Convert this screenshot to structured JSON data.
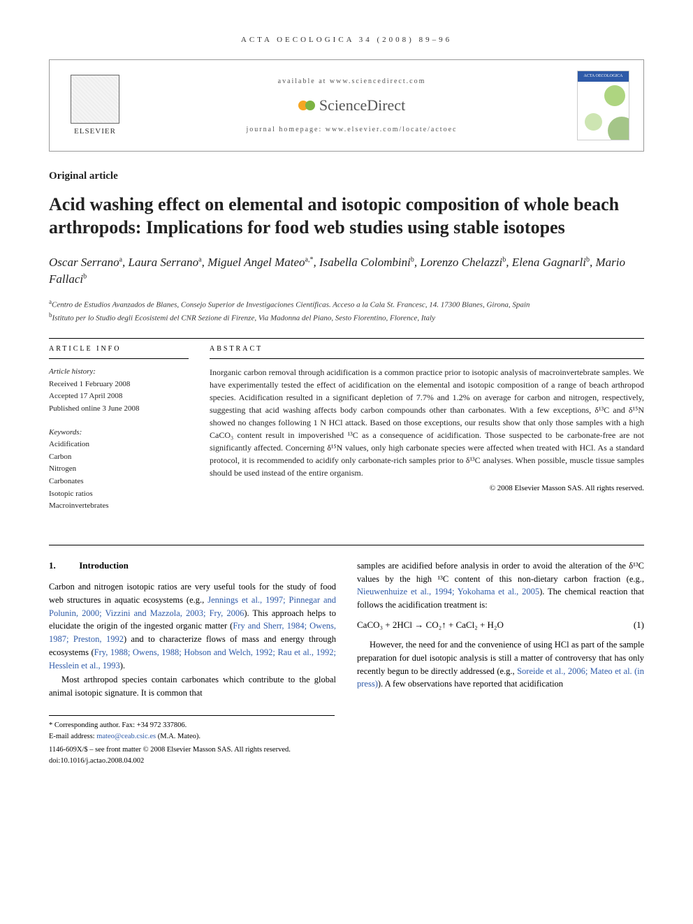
{
  "running_head": "ACTA OECOLOGICA 34 (2008) 89–96",
  "header": {
    "available": "available at www.sciencedirect.com",
    "brand": "ScienceDirect",
    "homepage": "journal homepage: www.elsevier.com/locate/actoec",
    "publisher": "ELSEVIER",
    "journal_cover_title": "ACTA OECOLOGICA"
  },
  "article_type": "Original article",
  "title": "Acid washing effect on elemental and isotopic composition of whole beach arthropods: Implications for food web studies using stable isotopes",
  "authors_html": "Oscar Serrano<sup>a</sup>, Laura Serrano<sup>a</sup>, Miguel Angel Mateo<sup>a,*</sup>, Isabella Colombini<sup>b</sup>, Lorenzo Chelazzi<sup>b</sup>, Elena Gagnarli<sup>b</sup>, Mario Fallaci<sup>b</sup>",
  "affiliations": {
    "a": "Centro de Estudios Avanzados de Blanes, Consejo Superior de Investigaciones Científicas. Acceso a la Cala St. Francesc, 14. 17300 Blanes, Girona, Spain",
    "b": "Istituto per lo Studio degli Ecosistemi del CNR Sezione di Firenze, Via Madonna del Piano, Sesto Fiorentino, Florence, Italy"
  },
  "info": {
    "label": "ARTICLE INFO",
    "history_label": "Article history:",
    "received": "Received 1 February 2008",
    "accepted": "Accepted 17 April 2008",
    "published": "Published online 3 June 2008",
    "keywords_label": "Keywords:",
    "keywords": [
      "Acidification",
      "Carbon",
      "Nitrogen",
      "Carbonates",
      "Isotopic ratios",
      "Macroinvertebrates"
    ]
  },
  "abstract": {
    "label": "ABSTRACT",
    "text": "Inorganic carbon removal through acidification is a common practice prior to isotopic analysis of macroinvertebrate samples. We have experimentally tested the effect of acidification on the elemental and isotopic composition of a range of beach arthropod species. Acidification resulted in a significant depletion of 7.7% and 1.2% on average for carbon and nitrogen, respectively, suggesting that acid washing affects body carbon compounds other than carbonates. With a few exceptions, δ¹³C and δ¹⁵N showed no changes following 1 N HCl attack. Based on those exceptions, our results show that only those samples with a high CaCO₃ content result in impoverished ¹³C as a consequence of acidification. Those suspected to be carbonate-free are not significantly affected. Concerning δ¹⁵N values, only high carbonate species were affected when treated with HCl. As a standard protocol, it is recommended to acidify only carbonate-rich samples prior to δ¹³C analyses. When possible, muscle tissue samples should be used instead of the entire organism.",
    "copyright": "© 2008 Elsevier Masson SAS. All rights reserved."
  },
  "body": {
    "section1_num": "1.",
    "section1_title": "Introduction",
    "para1": "Carbon and nitrogen isotopic ratios are very useful tools for the study of food web structures in aquatic ecosystems (e.g., ",
    "para1_refs": "Jennings et al., 1997; Pinnegar and Polunin, 2000; Vizzini and Mazzola, 2003; Fry, 2006",
    "para1_cont": "). This approach helps to elucidate the origin of the ingested organic matter (",
    "para1_refs2": "Fry and Sherr, 1984; Owens, 1987; Preston, 1992",
    "para1_cont2": ") and to characterize flows of mass and energy through ecosystems (",
    "para1_refs3": "Fry, 1988; Owens, 1988; Hobson and Welch, 1992; Rau et al., 1992; Hesslein et al., 1993",
    "para1_cont3": ").",
    "para2": "Most arthropod species contain carbonates which contribute to the global animal isotopic signature. It is common that",
    "para3": "samples are acidified before analysis in order to avoid the alteration of the δ¹³C values by the high ¹³C content of this non-dietary carbon fraction (e.g., ",
    "para3_refs": "Nieuwenhuize et al., 1994; Yokohama et al., 2005",
    "para3_cont": "). The chemical reaction that follows the acidification treatment is:",
    "equation": "CaCO₃ + 2HCl → CO₂↑ + CaCl₂ + H₂O",
    "equation_num": "(1)",
    "para4": "However, the need for and the convenience of using HCl as part of the sample preparation for duel isotopic analysis is still a matter of controversy that has only recently begun to be directly addressed (e.g., ",
    "para4_refs": "Soreide et al., 2006; Mateo et al. (in press)",
    "para4_cont": "). A few observations have reported that acidification"
  },
  "footnotes": {
    "corr": "* Corresponding author. Fax: +34 972 337806.",
    "email_label": "E-mail address: ",
    "email": "mateo@ceab.csic.es",
    "email_author": " (M.A. Mateo)."
  },
  "footer": {
    "line1": "1146-609X/$ – see front matter © 2008 Elsevier Masson SAS. All rights reserved.",
    "line2": "doi:10.1016/j.actao.2008.04.002"
  },
  "colors": {
    "link": "#2e5aa8",
    "text": "#222222",
    "rule": "#000000"
  }
}
